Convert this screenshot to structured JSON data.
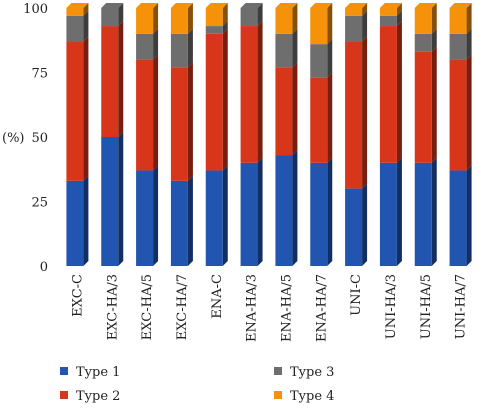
{
  "chart_data": {
    "type": "bar",
    "stacked": true,
    "percent": true,
    "ylabel": "(%)",
    "ylim": [
      0,
      100
    ],
    "yticks": [
      0,
      25,
      50,
      75,
      100
    ],
    "categories": [
      "EXC-C",
      "EXC-HA/3",
      "EXC-HA/5",
      "EXC-HA/7",
      "ENA-C",
      "ENA-HA/3",
      "ENA-HA/5",
      "ENA-HA/7",
      "UNI-C",
      "UNI-HA/3",
      "UNI-HA/5",
      "UNI-HA/7"
    ],
    "series": [
      {
        "name": "Type 1",
        "color": "#2255b0",
        "values": [
          33,
          50,
          37,
          33,
          37,
          40,
          43,
          40,
          30,
          40,
          40,
          37
        ]
      },
      {
        "name": "Type 2",
        "color": "#d8361a",
        "values": [
          54,
          43,
          43,
          44,
          53,
          53,
          34,
          33,
          57,
          53,
          43,
          43
        ]
      },
      {
        "name": "Type 3",
        "color": "#6e6e6e",
        "values": [
          10,
          7,
          10,
          13,
          3,
          7,
          13,
          13,
          10,
          4,
          7,
          10
        ]
      },
      {
        "name": "Type 4",
        "color": "#f5920a",
        "values": [
          3,
          0,
          10,
          10,
          7,
          0,
          10,
          14,
          3,
          3,
          10,
          10
        ]
      }
    ],
    "legend_position": "bottom",
    "grid": false
  }
}
